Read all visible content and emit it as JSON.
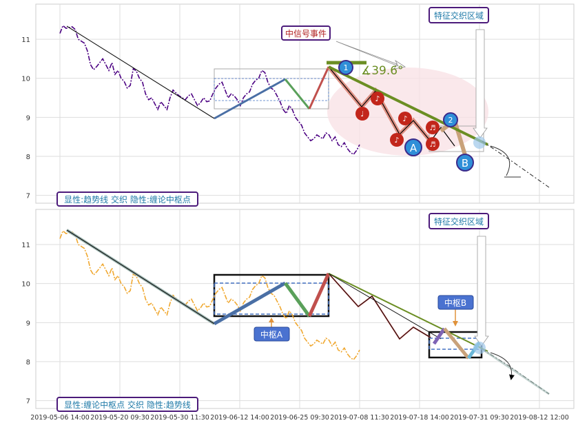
{
  "chart_data": {
    "type": "line",
    "x_ticks": [
      "2019-05-06 14:00",
      "2019-05-20 09:30",
      "2019-05-30 11:30",
      "2019-06-12 14:00",
      "2019-06-25 09:30",
      "2019-07-08 11:30",
      "2019-07-18 14:00",
      "2019-07-31 09:30",
      "2019-08-12 12:00"
    ],
    "y_ticks": [
      "7",
      "8",
      "9",
      "10",
      "11"
    ],
    "ylim": [
      6.8,
      11.9
    ],
    "grid": true,
    "colors": {
      "price_top": "#4b0082",
      "price_bottom": "#f0a830",
      "trend": "#000000",
      "up_seg": "#4a6fa5",
      "green_seg": "#5aa05a",
      "red_seg": "#c0504d",
      "olive": "#6b8e23",
      "zone": "#4472c4"
    },
    "panels": [
      {
        "legend": "显性:趋势线 交织 隐性:缠论中枢点",
        "annotations": {
          "event": "中信号事件",
          "feature": "特征交织区域",
          "angle": "∡39.6°",
          "label_a": "A",
          "label_b": "B",
          "label_1": "1",
          "label_2": "2"
        }
      },
      {
        "legend": "显性:缠论中枢点 交织 隐性:趋势线",
        "annotations": {
          "feature": "特征交织区域",
          "center_a": "中枢A",
          "center_b": "中枢B"
        }
      }
    ],
    "series": [
      {
        "values": [
          11.15,
          11.35,
          11.28,
          11.3,
          11.32,
          11.25,
          11.0,
          10.95,
          10.9,
          10.7,
          10.35,
          10.22,
          10.3,
          10.4,
          10.5,
          10.35,
          10.2,
          10.4,
          10.1,
          10.2,
          10.0,
          9.92,
          9.75,
          9.82,
          10.25,
          10.18,
          10.0,
          9.9,
          9.6,
          9.45,
          9.5,
          9.35,
          9.2,
          9.4,
          9.3,
          9.2,
          9.5,
          9.7,
          9.62,
          9.55,
          9.5,
          9.45,
          9.55,
          9.6,
          9.45,
          9.3,
          9.38,
          9.5,
          9.4,
          9.42,
          9.6,
          9.75,
          9.85,
          9.9,
          9.7,
          9.5,
          9.6,
          9.55,
          9.45,
          9.3,
          9.5,
          9.6,
          9.65,
          9.85,
          9.95,
          10.0,
          10.2,
          10.15,
          9.9,
          9.75,
          9.7,
          9.55,
          9.4,
          9.2,
          9.1,
          9.3,
          9.2,
          9.0,
          8.9,
          8.8,
          8.6,
          8.5,
          8.4,
          8.45,
          8.55,
          8.5,
          8.45,
          8.6,
          8.55,
          8.4,
          8.5,
          8.3,
          8.25,
          8.35,
          8.2,
          8.1,
          8.05,
          8.15,
          8.3
        ]
      }
    ]
  }
}
